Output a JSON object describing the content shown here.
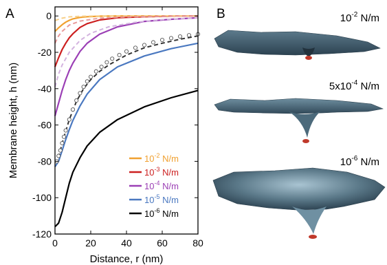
{
  "panels": {
    "a_letter": "A",
    "b_letter": "B"
  },
  "chart_data": {
    "type": "line",
    "xlabel": "Distance, r (nm)",
    "ylabel": "Membrane height, h (nm)",
    "xlim": [
      0,
      80
    ],
    "ylim": [
      -120,
      5
    ],
    "xticks": [
      "0",
      "20",
      "40",
      "60",
      "80"
    ],
    "yticks": [
      "0",
      "-20",
      "-40",
      "-60",
      "-80",
      "-100",
      "-120"
    ],
    "grid": false,
    "legend_position": "bottom-right",
    "series": [
      {
        "name_base": "10",
        "name_exp": "-2",
        "name_unit": " N/m",
        "color": "#f0a030",
        "x": [
          0,
          2,
          4,
          6,
          8,
          10,
          14,
          18,
          25,
          35,
          50,
          65,
          80
        ],
        "y": [
          -8.5,
          -6.5,
          -4.8,
          -3.4,
          -2.4,
          -1.6,
          -0.8,
          -0.4,
          -0.1,
          0,
          0,
          0,
          0
        ]
      },
      {
        "name_base": "10",
        "name_exp": "-3",
        "name_unit": " N/m",
        "color": "#cc1f1f",
        "x": [
          0,
          2,
          4,
          6,
          8,
          10,
          14,
          18,
          25,
          35,
          50,
          65,
          80
        ],
        "y": [
          -28,
          -23,
          -18.5,
          -15,
          -12,
          -9.8,
          -6.3,
          -4.2,
          -2.2,
          -1,
          -0.4,
          -0.1,
          0
        ]
      },
      {
        "name_base": "10",
        "name_exp": "-4",
        "name_unit": " N/m",
        "color": "#9b3fb5",
        "x": [
          0,
          2,
          4,
          6,
          8,
          10,
          14,
          18,
          25,
          35,
          50,
          65,
          80
        ],
        "y": [
          -55,
          -48,
          -41,
          -35,
          -30,
          -26,
          -19.5,
          -15,
          -10,
          -6,
          -3,
          -1.8,
          -1
        ]
      },
      {
        "name_base": "10",
        "name_exp": "-5",
        "name_unit": " N/m",
        "color": "#4a78c0",
        "x": [
          0,
          2,
          4,
          6,
          8,
          10,
          14,
          18,
          25,
          35,
          50,
          65,
          80
        ],
        "y": [
          -83,
          -80,
          -74,
          -68,
          -62.5,
          -57.5,
          -49.5,
          -43,
          -35,
          -28,
          -22,
          -18,
          -15
        ]
      },
      {
        "name_base": "10",
        "name_exp": "-6",
        "name_unit": " N/m",
        "color": "#000000",
        "x": [
          0,
          2,
          4,
          6,
          8,
          10,
          14,
          18,
          25,
          35,
          50,
          65,
          80
        ],
        "y": [
          -116,
          -114,
          -108,
          -100,
          -92,
          -86,
          -78,
          -71.5,
          -64,
          -57,
          -50,
          -45,
          -41
        ]
      }
    ],
    "dashed_series": [
      {
        "color": "#f7d08a",
        "x": [
          0,
          4,
          8,
          14,
          25,
          40,
          80
        ],
        "y": [
          -2.5,
          -1.2,
          -0.5,
          -0.2,
          0,
          0,
          0
        ]
      },
      {
        "color": "#e89a9a",
        "x": [
          0,
          2,
          4,
          8,
          14,
          25,
          40,
          60,
          80
        ],
        "y": [
          -15,
          -11,
          -8.5,
          -5,
          -2.8,
          -1.2,
          -0.5,
          -0.2,
          0
        ]
      },
      {
        "color": "#d3b3df",
        "x": [
          0,
          2,
          4,
          8,
          14,
          20,
          30,
          45,
          60,
          80
        ],
        "y": [
          -39,
          -32,
          -27,
          -20,
          -13.5,
          -9.5,
          -6,
          -3.5,
          -2,
          -1
        ]
      },
      {
        "color": "#333333",
        "x": [
          2,
          4,
          8,
          12,
          16,
          20,
          25,
          30,
          40,
          50,
          60,
          70,
          80
        ],
        "y": [
          -78,
          -70,
          -57,
          -47,
          -40,
          -35,
          -30.5,
          -27,
          -21.5,
          -17.5,
          -15,
          -12.8,
          -11
        ]
      }
    ],
    "markers": {
      "x": [
        1,
        2,
        3,
        4,
        5,
        6,
        8,
        10,
        12,
        14,
        16,
        18,
        20,
        23,
        26,
        29,
        32,
        36,
        40,
        45,
        50,
        55,
        60,
        65,
        70,
        75,
        80
      ],
      "y": [
        -80,
        -77,
        -74,
        -70,
        -66.5,
        -63,
        -57,
        -51.5,
        -46.5,
        -42.5,
        -39,
        -36,
        -33.5,
        -30.5,
        -28,
        -25.5,
        -23.5,
        -21.5,
        -19.5,
        -17.5,
        -16,
        -14.5,
        -13.2,
        -12.2,
        -11.3,
        -10.6,
        -10
      ]
    }
  },
  "shapes": {
    "labels": [
      {
        "base": "10",
        "exp": "-2",
        "unit": " N/m"
      },
      {
        "base": "5x10",
        "exp": "-4",
        "unit": " N/m"
      },
      {
        "base": "10",
        "exp": "-6",
        "unit": " N/m"
      }
    ],
    "surface_color": "#3d5868",
    "tip_color": "#c0392b"
  }
}
